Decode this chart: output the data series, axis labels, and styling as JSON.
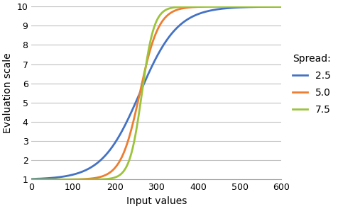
{
  "title": "",
  "xlabel": "Input values",
  "ylabel": "Evaluation scale",
  "xlim": [
    0,
    600
  ],
  "ylim": [
    1,
    10
  ],
  "xticks": [
    0,
    100,
    200,
    300,
    400,
    500,
    600
  ],
  "yticks": [
    1,
    2,
    3,
    4,
    5,
    6,
    7,
    8,
    9,
    10
  ],
  "curves": [
    {
      "spread": 2.5,
      "k": 0.022,
      "midpoint": 260,
      "color": "#4472c4",
      "label": "2.5"
    },
    {
      "spread": 5.0,
      "k": 0.044,
      "midpoint": 260,
      "color": "#ed7d31",
      "label": "5.0"
    },
    {
      "spread": 7.5,
      "k": 0.068,
      "midpoint": 265,
      "color": "#9dc33b",
      "label": "7.5"
    }
  ],
  "legend_title": "Spread:",
  "background_color": "#ffffff",
  "grid_color": "#c0c0c0"
}
